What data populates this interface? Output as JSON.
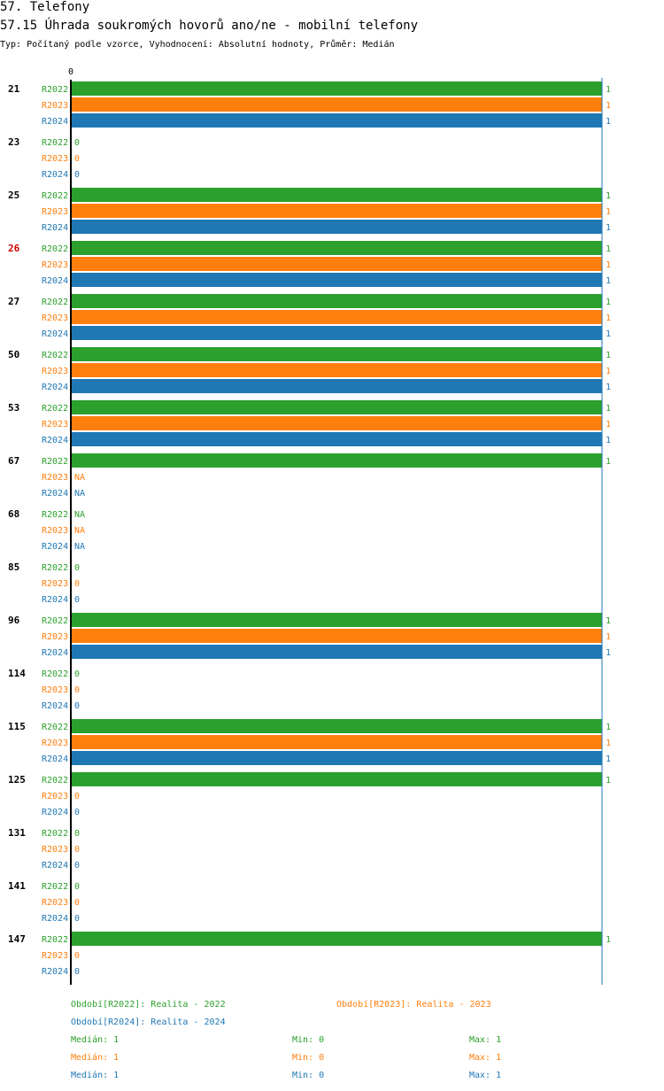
{
  "header": {
    "title": "57. Telefony",
    "subtitle": "57.15 Úhrada soukromých hovorů ano/ne - mobilní telefony",
    "info": "Typ: Počítaný podle vzorce, Vyhodnocení: Absolutní hodnoty, Průměr: Medián"
  },
  "colors": {
    "R2022": "#2ca02c",
    "R2023": "#ff7f0e",
    "R2024": "#1f77b4",
    "highlight": "#cc0000"
  },
  "chart_data": {
    "type": "bar",
    "orientation": "horizontal",
    "axis_tick_label": "0",
    "xlim": [
      0,
      1
    ],
    "series_names": [
      "R2022",
      "R2023",
      "R2024"
    ],
    "highlight_category": "26",
    "categories": [
      {
        "label": "21",
        "values": [
          1,
          1,
          1
        ]
      },
      {
        "label": "23",
        "values": [
          0,
          0,
          0
        ]
      },
      {
        "label": "25",
        "values": [
          1,
          1,
          1
        ]
      },
      {
        "label": "26",
        "values": [
          1,
          1,
          1
        ]
      },
      {
        "label": "27",
        "values": [
          1,
          1,
          1
        ]
      },
      {
        "label": "50",
        "values": [
          1,
          1,
          1
        ]
      },
      {
        "label": "53",
        "values": [
          1,
          1,
          1
        ]
      },
      {
        "label": "67",
        "values": [
          1,
          "NA",
          "NA"
        ]
      },
      {
        "label": "68",
        "values": [
          "NA",
          "NA",
          "NA"
        ]
      },
      {
        "label": "85",
        "values": [
          0,
          0,
          0
        ]
      },
      {
        "label": "96",
        "values": [
          1,
          1,
          1
        ]
      },
      {
        "label": "114",
        "values": [
          0,
          0,
          0
        ]
      },
      {
        "label": "115",
        "values": [
          1,
          1,
          1
        ]
      },
      {
        "label": "125",
        "values": [
          1,
          0,
          0
        ]
      },
      {
        "label": "131",
        "values": [
          0,
          0,
          0
        ]
      },
      {
        "label": "141",
        "values": [
          0,
          0,
          0
        ]
      },
      {
        "label": "147",
        "values": [
          1,
          0,
          0
        ]
      }
    ]
  },
  "legend": {
    "periods": [
      "Období[R2022]: Realita - 2022",
      "Období[R2023]: Realita - 2023",
      "Období[R2024]: Realita - 2024"
    ],
    "stats": [
      {
        "median": "Medián: 1",
        "min": "Min: 0",
        "max": "Max: 1"
      },
      {
        "median": "Medián: 1",
        "min": "Min: 0",
        "max": "Max: 1"
      },
      {
        "median": "Medián: 1",
        "min": "Min: 0",
        "max": "Max: 1"
      }
    ]
  }
}
